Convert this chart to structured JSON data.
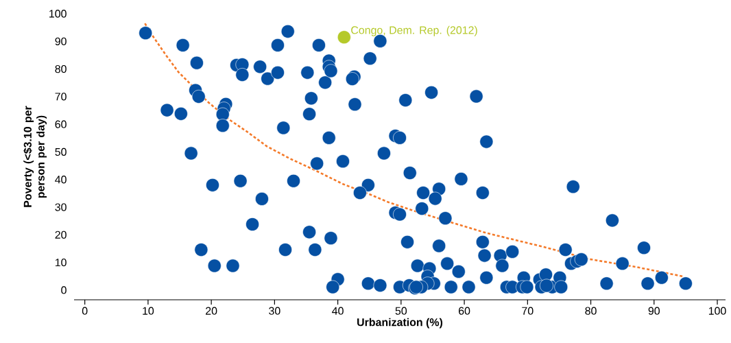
{
  "chart_data": {
    "type": "scatter",
    "xlabel": "Urbanization (%)",
    "ylabel": "Poverty (<$3.10 per person per day)",
    "xlim": [
      -1.7,
      101.3
    ],
    "ylim": [
      -3.5,
      100
    ],
    "xticks": [
      0,
      10,
      20,
      30,
      40,
      50,
      60,
      70,
      80,
      90,
      100
    ],
    "yticks": [
      0,
      10,
      20,
      30,
      40,
      50,
      60,
      70,
      80,
      90,
      100
    ],
    "grid": false,
    "marker": "circle",
    "series": [
      {
        "color": "#0550a3",
        "x": [
          9.6,
          15.5,
          17.7,
          17.5,
          18.0,
          13.0,
          15.2,
          16.8,
          18.4,
          20.2,
          20.5,
          23.4,
          24.0,
          24.9,
          24.9,
          22.3,
          22.0,
          21.8,
          21.8,
          24.6,
          27.7,
          28.9,
          30.5,
          30.5,
          32.1,
          31.4,
          28.0,
          26.5,
          33.0,
          31.7,
          35.2,
          35.8,
          35.5,
          37.0,
          38.0,
          38.6,
          38.6,
          38.9,
          38.6,
          36.7,
          35.5,
          36.4,
          38.9,
          40.0,
          39.2,
          46.7,
          45.1,
          42.6,
          42.3,
          42.7,
          50.7,
          40.8,
          47.3,
          49.1,
          49.8,
          51.4,
          44.8,
          43.5,
          49.1,
          49.8,
          51.0,
          44.8,
          46.7,
          49.8,
          51.3,
          52.2,
          54.8,
          61.9,
          63.5,
          59.5,
          77.2,
          56.0,
          53.5,
          55.4,
          62.9,
          53.3,
          57.0,
          83.4,
          56.0,
          62.9,
          63.2,
          65.7,
          67.6,
          76.0,
          76.9,
          77.8,
          78.5,
          85.0,
          88.4,
          52.6,
          54.5,
          57.3,
          59.1,
          66.0,
          63.5,
          54.2,
          55.2,
          54.2,
          53.2,
          52.4,
          57.9,
          60.7,
          66.7,
          67.6,
          69.4,
          69.2,
          69.9,
          71.9,
          72.9,
          72.2,
          73.9,
          75.1,
          75.3,
          73.0,
          82.5,
          89.0,
          91.2,
          95.0
        ],
        "values": [
          93.0,
          88.6,
          82.2,
          72.3,
          70.0,
          65.1,
          63.8,
          49.5,
          14.6,
          38.0,
          8.8,
          8.8,
          81.4,
          81.6,
          77.9,
          67.3,
          65.7,
          63.6,
          59.5,
          39.5,
          80.8,
          76.5,
          78.7,
          88.6,
          93.6,
          58.7,
          33.0,
          23.8,
          39.5,
          14.6,
          78.7,
          69.4,
          63.7,
          88.6,
          75.1,
          83.0,
          80.8,
          79.3,
          55.1,
          45.8,
          21.0,
          14.6,
          18.8,
          3.9,
          1.1,
          90.1,
          83.8,
          77.2,
          76.4,
          67.2,
          68.7,
          46.6,
          49.5,
          55.8,
          55.1,
          42.4,
          38.0,
          35.2,
          28.0,
          27.4,
          17.4,
          2.4,
          1.7,
          1.1,
          1.7,
          0.7,
          71.5,
          70.1,
          53.7,
          40.2,
          37.4,
          36.6,
          35.2,
          33.1,
          35.2,
          29.5,
          26.0,
          25.2,
          16.0,
          17.4,
          12.5,
          12.5,
          13.9,
          14.6,
          9.6,
          10.4,
          11.1,
          9.6,
          15.3,
          8.8,
          7.8,
          9.6,
          6.7,
          8.8,
          4.5,
          4.9,
          2.4,
          2.4,
          1.1,
          1.1,
          1.1,
          1.1,
          1.1,
          1.1,
          4.5,
          1.1,
          1.1,
          3.8,
          5.6,
          1.1,
          1.1,
          4.5,
          1.1,
          1.6,
          2.4,
          2.4,
          4.5,
          2.4
        ]
      },
      {
        "color": "#b5c92a",
        "x": [
          41.0
        ],
        "values": [
          91.5
        ]
      },
      {
        "type": "line",
        "color": "#f47a2a",
        "line_style": "dotted",
        "marker": "none",
        "x": [
          9.5,
          10.7,
          12.8,
          14.8,
          16.6,
          19.4,
          22.7,
          25.6,
          28.8,
          32.5,
          36.1,
          40.8,
          45.1,
          48.0,
          51.6,
          58.5,
          63.6,
          72.6,
          79.8,
          87.1,
          94.7
        ],
        "values": [
          96.5,
          92.1,
          85.1,
          78.9,
          74.8,
          68.2,
          61.9,
          57.4,
          52.0,
          47.5,
          43.7,
          38.4,
          34.6,
          31.8,
          29.0,
          24.1,
          20.6,
          15.6,
          11.2,
          8.4,
          4.9
        ]
      }
    ],
    "annotations": [
      {
        "text": "Congo, Dem. Rep. (2012)",
        "x": 41.0,
        "y": 91.5
      }
    ]
  }
}
